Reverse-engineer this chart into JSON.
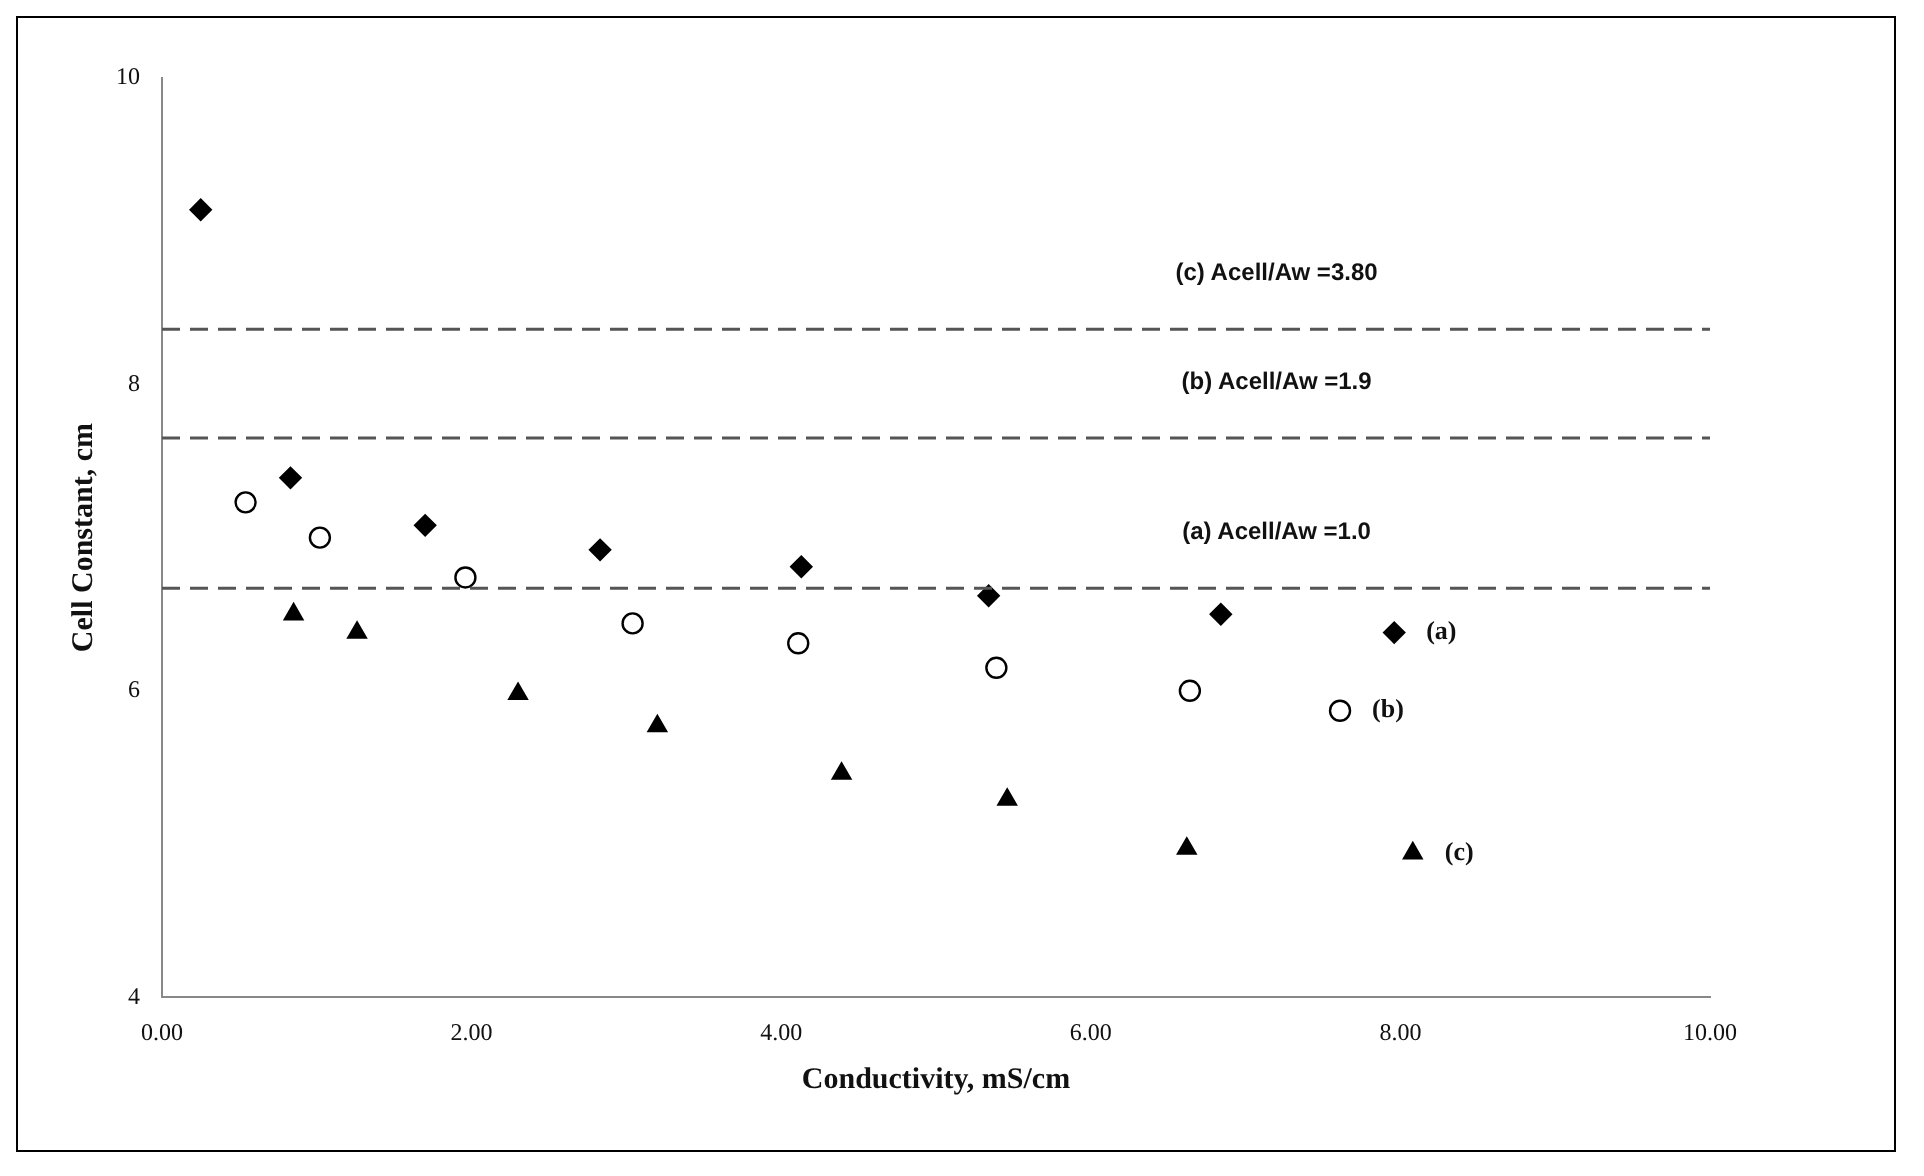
{
  "chart_data": {
    "type": "scatter",
    "xlabel": "Conductivity, mS/cm",
    "ylabel": "Cell Constant, cm",
    "xlim": [
      0,
      10
    ],
    "xticks": [
      {
        "value": 0,
        "label": "0.00"
      },
      {
        "value": 2,
        "label": "2.00"
      },
      {
        "value": 4,
        "label": "4.00"
      },
      {
        "value": 6,
        "label": "6.00"
      },
      {
        "value": 8,
        "label": "8.00"
      },
      {
        "value": 10,
        "label": "10.00"
      }
    ],
    "ylim": [
      4,
      10
    ],
    "yticks": [
      4,
      6,
      8,
      10
    ],
    "grid": false,
    "legend": false,
    "series": [
      {
        "name": "(a)",
        "color": "#000000",
        "marker": "diamond",
        "x": [
          0.25,
          0.83,
          1.7,
          2.83,
          4.13,
          5.34,
          6.84,
          7.96
        ],
        "values": [
          9.14,
          7.39,
          7.08,
          6.92,
          6.81,
          6.62,
          6.5,
          6.38
        ]
      },
      {
        "name": "(b)",
        "color": "#000000",
        "marker": "circle",
        "x": [
          0.54,
          1.02,
          1.96,
          3.04,
          4.11,
          5.39,
          6.64,
          7.61
        ],
        "values": [
          7.23,
          7.0,
          6.74,
          6.44,
          6.31,
          6.15,
          6.0,
          5.87
        ]
      },
      {
        "name": "(c)",
        "color": "#000000",
        "marker": "triangle",
        "x": [
          0.85,
          1.26,
          2.3,
          3.2,
          4.39,
          5.46,
          6.62,
          8.08
        ],
        "values": [
          6.5,
          6.38,
          5.98,
          5.77,
          5.46,
          5.29,
          4.97,
          4.94
        ]
      }
    ],
    "ref_lines": [
      {
        "axis": "y",
        "value": 8.36,
        "line_style": "dashed",
        "color": "#555555"
      },
      {
        "axis": "y",
        "value": 7.65,
        "line_style": "dashed",
        "color": "#555555"
      },
      {
        "axis": "y",
        "value": 6.67,
        "line_style": "dashed",
        "color": "#555555"
      }
    ],
    "annotations": [
      "(c) Acell/Aw =3.80",
      "(b) Acell/Aw =1.9",
      "(a) Acell/Aw =1.0"
    ]
  }
}
